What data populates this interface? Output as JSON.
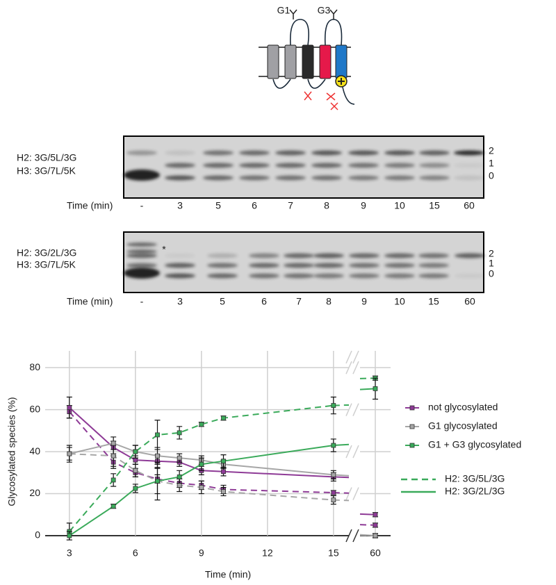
{
  "diagram": {
    "labels": [
      "G1",
      "G3"
    ]
  },
  "gels": [
    {
      "rows": [
        "H2: 3G/5L/3G",
        "H3: 3G/7L/5K"
      ],
      "time_label": "Time (min)",
      "lanes": [
        "-",
        "3",
        "5",
        "6",
        "7",
        "8",
        "9",
        "10",
        "15",
        "60"
      ],
      "bands": [
        "2",
        "1",
        "0"
      ]
    },
    {
      "rows": [
        "H2: 3G/2L/3G",
        "H3: 3G/7L/5K"
      ],
      "time_label": "Time (min)",
      "lanes": [
        "-",
        "3",
        "5",
        "6",
        "7",
        "8",
        "9",
        "10",
        "15",
        "60"
      ],
      "bands": [
        "2",
        "1",
        "0"
      ],
      "mark": "*"
    }
  ],
  "chart_data": {
    "type": "line",
    "x": [
      3,
      5,
      6,
      7,
      8,
      9,
      10,
      15,
      60
    ],
    "xlim": [
      1.9,
      15.7
    ],
    "xticks": [
      3,
      6,
      9,
      12,
      15
    ],
    "x2lim": [
      59.3,
      60.7
    ],
    "x2ticks": [
      60
    ],
    "ylim": [
      0,
      88
    ],
    "yticks": [
      0,
      20,
      40,
      60,
      80
    ],
    "grid": true,
    "xlabel": "Time (min)",
    "ylabel": "Glycosylated species  (%)",
    "series": [
      {
        "color": "#8e3a96",
        "style": "dashed",
        "values": [
          59,
          35,
          30,
          27,
          25,
          24,
          22,
          20.5,
          5
        ],
        "errors": [
          3,
          3,
          2,
          2,
          2,
          2,
          2,
          1,
          1
        ]
      },
      {
        "color": "#8e3a96",
        "style": "solid",
        "values": [
          61,
          42,
          36,
          35.5,
          35,
          31,
          30.5,
          28,
          10
        ],
        "errors": [
          5,
          3,
          2,
          3,
          2,
          2,
          2,
          2,
          1
        ]
      },
      {
        "color": "#a6a6a6",
        "style": "dashed",
        "values": [
          39,
          38,
          31,
          26,
          24,
          23,
          21,
          17,
          0
        ],
        "errors": [
          4,
          5,
          3,
          9,
          3,
          3,
          2,
          2,
          1
        ]
      },
      {
        "color": "#a6a6a6",
        "style": "solid",
        "values": [
          39,
          44,
          40,
          38,
          37,
          36,
          34,
          29,
          0
        ],
        "errors": [
          3,
          3,
          3,
          4,
          2,
          2,
          2,
          2,
          1
        ]
      },
      {
        "color": "#3aaa5a",
        "style": "dashed",
        "values": [
          2,
          26.5,
          40,
          48,
          49,
          53,
          56,
          62,
          75
        ],
        "errors": [
          4,
          3,
          3,
          7,
          3,
          1,
          1,
          4,
          1
        ]
      },
      {
        "color": "#3aaa5a",
        "style": "solid",
        "values": [
          0,
          14,
          22.5,
          26,
          28,
          34,
          35.5,
          43,
          70
        ],
        "errors": [
          2,
          1,
          2,
          6,
          3,
          3,
          3,
          3,
          5
        ]
      }
    ],
    "legend_colors": [
      {
        "name": "not glycosylated",
        "color": "#8e3a96"
      },
      {
        "name": "G1 glycosylated",
        "color": "#a6a6a6"
      },
      {
        "name": "G1 + G3 glycosylated",
        "color": "#3aaa5a"
      }
    ],
    "legend_styles": [
      {
        "name": "H2: 3G/5L/3G",
        "style": "dashed"
      },
      {
        "name": "H2: 3G/2L/3G",
        "style": "solid"
      }
    ]
  }
}
